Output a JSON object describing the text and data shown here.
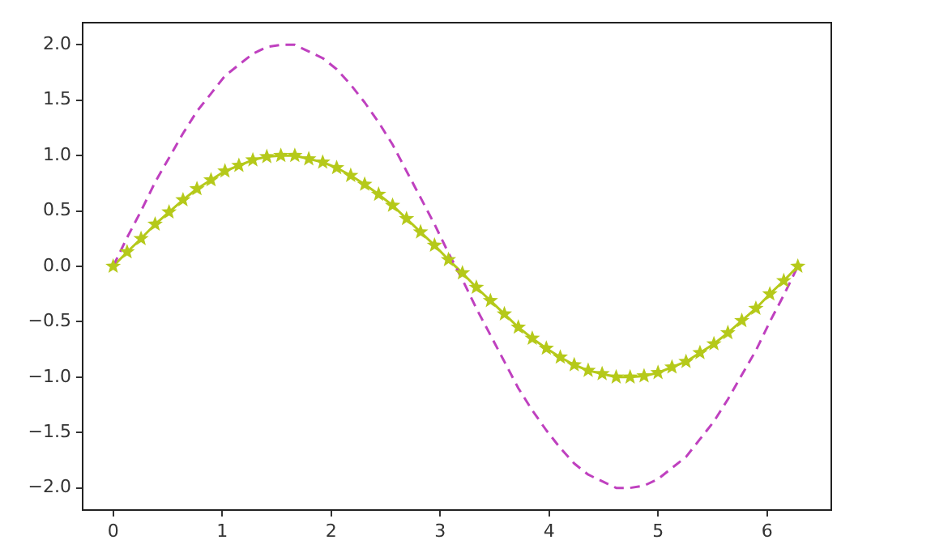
{
  "chart_data": {
    "type": "line",
    "grid": false,
    "legend": false,
    "x": [
      0,
      0.128,
      0.256,
      0.385,
      0.513,
      0.641,
      0.769,
      0.898,
      1.026,
      1.154,
      1.282,
      1.41,
      1.539,
      1.667,
      1.795,
      1.923,
      2.051,
      2.18,
      2.308,
      2.436,
      2.564,
      2.692,
      2.821,
      2.949,
      3.077,
      3.205,
      3.333,
      3.462,
      3.59,
      3.718,
      3.846,
      3.975,
      4.103,
      4.231,
      4.359,
      4.487,
      4.616,
      4.744,
      4.872,
      5,
      5.128,
      5.257,
      5.385,
      5.513,
      5.641,
      5.769,
      5.898,
      6.026,
      6.154,
      6.283
    ],
    "series": [
      {
        "color": "#bf40bf",
        "line_style": "dashed",
        "marker": "none",
        "values": [
          0,
          0.26,
          0.5,
          0.76,
          0.98,
          1.2,
          1.4,
          1.56,
          1.72,
          1.82,
          1.92,
          1.98,
          2,
          2,
          1.94,
          1.88,
          1.78,
          1.64,
          1.48,
          1.3,
          1.1,
          0.86,
          0.62,
          0.38,
          0.12,
          -0.12,
          -0.38,
          -0.62,
          -0.86,
          -1.1,
          -1.3,
          -1.48,
          -1.64,
          -1.78,
          -1.88,
          -1.94,
          -2,
          -2,
          -1.98,
          -1.92,
          -1.82,
          -1.72,
          -1.56,
          -1.4,
          -1.2,
          -0.98,
          -0.76,
          -0.5,
          -0.26,
          0
        ]
      },
      {
        "color": "#b5c91a",
        "line_style": "solid",
        "marker": "star",
        "values": [
          0,
          0.13,
          0.25,
          0.38,
          0.49,
          0.6,
          0.7,
          0.78,
          0.86,
          0.91,
          0.96,
          0.99,
          1,
          1,
          0.97,
          0.94,
          0.89,
          0.82,
          0.74,
          0.65,
          0.55,
          0.43,
          0.31,
          0.19,
          0.06,
          -0.06,
          -0.19,
          -0.31,
          -0.43,
          -0.55,
          -0.65,
          -0.74,
          -0.82,
          -0.89,
          -0.94,
          -0.97,
          -1,
          -1,
          -0.99,
          -0.96,
          -0.91,
          -0.86,
          -0.78,
          -0.7,
          -0.6,
          -0.49,
          -0.38,
          -0.25,
          -0.13,
          0
        ]
      }
    ],
    "xlim": [
      -0.28,
      6.59
    ],
    "xticks": [
      0,
      1,
      2,
      3,
      4,
      5,
      6
    ],
    "ylim": [
      -2.2,
      2.2
    ],
    "yticks": [
      {
        "value": -2,
        "label": "−2.0"
      },
      {
        "value": -1.5,
        "label": "−1.5"
      },
      {
        "value": -1,
        "label": "−1.0"
      },
      {
        "value": -0.5,
        "label": "−0.5"
      },
      {
        "value": 0,
        "label": "0.0"
      },
      {
        "value": 0.5,
        "label": "0.5"
      },
      {
        "value": 1,
        "label": "1.0"
      },
      {
        "value": 1.5,
        "label": "1.5"
      },
      {
        "value": 2,
        "label": "2.0"
      }
    ]
  }
}
